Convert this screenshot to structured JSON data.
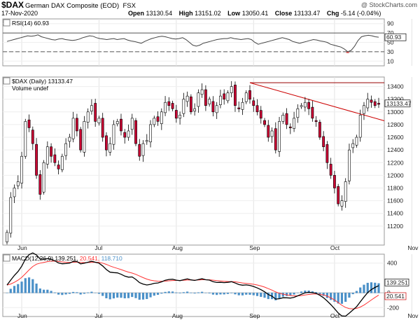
{
  "header": {
    "symbol": "$DAX",
    "name": "German DAX Composite (EOD)",
    "exchange": "FSX",
    "date": "17-Nov-2020",
    "copyright": "@ StockCharts.com",
    "quote": {
      "open_label": "Open",
      "open": "13130.54",
      "high_label": "High",
      "high": "13151.02",
      "low_label": "Low",
      "low": "13050.41",
      "close_label": "Close",
      "close": "13133.47",
      "chg_label": "Chg",
      "chg": "-5.14 (-0.04%)"
    }
  },
  "colors": {
    "up": "#ffffff",
    "down": "#cc0033",
    "trend": "#cc0000",
    "macd": "#000000",
    "signal": "#ff3333",
    "hist": "#4a90c8"
  },
  "chart_data": [
    {
      "type": "line",
      "panel": "rsi",
      "legend": "RSI(14) 60.93",
      "y_ticks": [
        "90",
        "70",
        "50",
        "30",
        "10"
      ],
      "y_range": [
        0,
        100
      ],
      "current_label": "60.93",
      "overbought": 70,
      "oversold": 30,
      "values": [
        52,
        54,
        56,
        58,
        60,
        62,
        64,
        63,
        64,
        66,
        62,
        60,
        58,
        56,
        55,
        57,
        58,
        56,
        55,
        54,
        55,
        57,
        60,
        62,
        64,
        63,
        60,
        58,
        57,
        56,
        57,
        58,
        56,
        57,
        58,
        55,
        53,
        52,
        50,
        48,
        52,
        55,
        58,
        60,
        62,
        63,
        62,
        60,
        58,
        57,
        58,
        60,
        56,
        50,
        44,
        42,
        44,
        48,
        50,
        52,
        54,
        56,
        57,
        58,
        58,
        60,
        58,
        57,
        56,
        57,
        58,
        56,
        50,
        46,
        48,
        50,
        52,
        54,
        56,
        58,
        60,
        58,
        56,
        52,
        50,
        48,
        50,
        52,
        54,
        56,
        55,
        53,
        52,
        50,
        46,
        44,
        42,
        40,
        36,
        30,
        33,
        42,
        54,
        62,
        64,
        65,
        64,
        62,
        61
      ]
    },
    {
      "type": "candlestick",
      "panel": "price",
      "legend": "$DAX (Daily) 13133.47",
      "sub_legend": "Volume undef",
      "y_ticks": [
        "13400",
        "13200",
        "13000",
        "12800",
        "12600",
        "12400",
        "12200",
        "12000",
        "11800",
        "11600",
        "11400",
        "11200"
      ],
      "y_range": [
        10900,
        13550
      ],
      "current_label": "13133.47",
      "x_labels": [
        "Jun",
        "Jul",
        "Aug",
        "Sep",
        "Oct",
        "Nov"
      ],
      "x_label_index": [
        4,
        25,
        46,
        67,
        89,
        110
      ],
      "closes": [
        11100,
        11650,
        11800,
        11900,
        12300,
        12850,
        12750,
        12500,
        12000,
        11700,
        12200,
        12450,
        12300,
        12200,
        12100,
        12300,
        12500,
        12600,
        12900,
        12700,
        12400,
        12850,
        13000,
        13100,
        12850,
        12900,
        12600,
        12400,
        12500,
        12800,
        12850,
        12700,
        12600,
        12700,
        12900,
        12500,
        12300,
        12500,
        12550,
        12800,
        12900,
        12850,
        13000,
        13150,
        13100,
        13050,
        12900,
        12950,
        13200,
        13250,
        13000,
        13050,
        13300,
        13350,
        13100,
        13200,
        13000,
        13100,
        13250,
        13200,
        13300,
        13400,
        13100,
        13050,
        13150,
        13300,
        13200,
        13100,
        13000,
        12900,
        12800,
        12600,
        12700,
        12400,
        12850,
        12950,
        12800,
        12750,
        12900,
        13050,
        13100,
        13150,
        13050,
        12900,
        12850,
        12600,
        12450,
        12200,
        12000,
        11800,
        11550,
        11600,
        11900,
        12400,
        12500,
        12600,
        12950,
        13100,
        13200,
        13150,
        13100,
        13133
      ],
      "trendline": {
        "start_value": 13460,
        "end_value": 12860
      },
      "resistance": 13460
    },
    {
      "type": "line",
      "panel": "macd",
      "legend": "MACD(12,26,9) 139.251, 20.541, 118.710",
      "legend_parts": [
        "MACD(12,26,9)",
        "139.251,",
        "20.541,",
        "118.710"
      ],
      "y_ticks": [
        "400",
        "0",
        "-200"
      ],
      "y_range": [
        -320,
        520
      ],
      "current_labels": [
        "139.251",
        "20.541"
      ]
    }
  ]
}
